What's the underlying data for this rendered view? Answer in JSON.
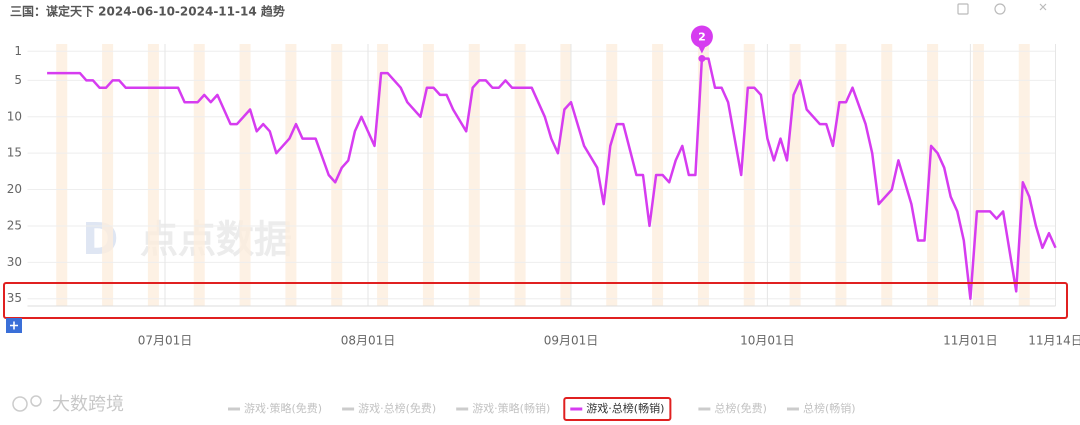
{
  "chart_data": {
    "type": "line",
    "title": "三国：谋定天下 2024-06-10-2024-11-14 趋势",
    "x": [
      "06月13日",
      "06月18日",
      "06月19日",
      "06月20日",
      "06月21日",
      "06月22日",
      "06月23日",
      "06月24日",
      "06月25日",
      "07月03日",
      "07月04日",
      "07月06日",
      "07月07日",
      "07月08日",
      "07月09日",
      "07月11日",
      "07月12日",
      "07月14日",
      "07月15日",
      "07月16日",
      "07月17日",
      "07月18日",
      "07月20日",
      "07月21日",
      "07月22日",
      "07月24日",
      "07月26日",
      "07月27日",
      "07月28日",
      "07月29日",
      "07月30日",
      "07月31日",
      "08月02日",
      "08月03日",
      "08月04日",
      "08月06日",
      "08月07日",
      "08月09日",
      "08月10日",
      "08月11日",
      "08月12日",
      "08月13日",
      "08月14日",
      "08月16日",
      "08月17日",
      "08月18日",
      "08月19日",
      "08月20日",
      "08月21日",
      "08月22日",
      "08月23日",
      "08月26日",
      "08月28日",
      "08月29日",
      "08月30日",
      "08月31日",
      "09月01日",
      "09月03日",
      "09月05日",
      "09月06日",
      "09月07日",
      "09月08日",
      "09月09日",
      "09月11日",
      "09月12日",
      "09月13日",
      "09月14日",
      "09月15日",
      "09月16日",
      "09月17日",
      "09月18日",
      "09月19日",
      "09月20日",
      "09月21日",
      "09月22日",
      "09月23日",
      "09月24日",
      "09月25日",
      "09月27日",
      "09月28日",
      "09月29日",
      "09月30日",
      "10月01日",
      "10月02日",
      "10月03日",
      "10月04日",
      "10月05日",
      "10月06日",
      "10月07日",
      "10月09日",
      "10月10日",
      "10月11日",
      "10月12日",
      "10月13日",
      "10月14日",
      "10月16日",
      "10月17日",
      "10月18日",
      "10月20日",
      "10月21日",
      "10月23日",
      "10月24日",
      "10月25日",
      "10月26日",
      "10月27日",
      "10月28日",
      "10月29日",
      "10月30日",
      "10月31日",
      "11月01日",
      "11月02日",
      "11月04日",
      "11月05日",
      "11月06日",
      "11月08日",
      "11月09日",
      "11月10日",
      "11月11日",
      "11月12日",
      "11月13日",
      "11月14日"
    ],
    "series": [
      {
        "name": "游戏·策略(免费)",
        "color": "#cccccc",
        "visible": false
      },
      {
        "name": "游戏·总榜(免费)",
        "color": "#cccccc",
        "visible": false
      },
      {
        "name": "游戏·策略(畅销)",
        "color": "#cccccc",
        "visible": false
      },
      {
        "name": "游戏·总榜(畅销)",
        "color": "#d63cf0",
        "visible": true,
        "values": [
          4,
          4,
          5,
          5,
          6,
          6,
          5,
          5,
          6,
          6,
          8,
          8,
          7,
          8,
          7,
          11,
          11,
          9,
          12,
          11,
          12,
          15,
          13,
          11,
          13,
          13,
          18,
          19,
          17,
          16,
          12,
          10,
          14,
          4,
          4,
          6,
          8,
          10,
          6,
          6,
          7,
          7,
          9,
          12,
          6,
          5,
          5,
          6,
          6,
          5,
          6,
          6,
          10,
          13,
          15,
          9,
          8,
          14,
          17,
          22,
          14,
          11,
          11,
          18,
          18,
          25,
          18,
          18,
          19,
          16,
          14,
          18,
          18,
          2,
          2,
          6,
          6,
          8,
          18,
          6,
          6,
          7,
          13,
          16,
          13,
          16,
          7,
          5,
          9,
          11,
          11,
          14,
          8,
          8,
          6,
          11,
          15,
          22,
          20,
          16,
          22,
          27,
          27,
          14,
          15,
          17,
          21,
          23,
          27,
          35,
          23,
          23,
          24,
          23,
          34,
          19,
          21,
          25,
          28,
          26,
          28
        ]
      },
      {
        "name": "总榜(免费)",
        "color": "#cccccc",
        "visible": false
      },
      {
        "name": "总榜(畅销)",
        "color": "#cccccc",
        "visible": false
      }
    ],
    "xlim": [
      "06月10日",
      "11月14日"
    ],
    "xticks": [
      "07月01日",
      "08月01日",
      "09月01日",
      "10月01日",
      "11月01日",
      "11月14日"
    ],
    "ylim": [
      0,
      36
    ],
    "y_inverted": true,
    "yticks": [
      1,
      5,
      10,
      15,
      20,
      25,
      30,
      35
    ],
    "grid": true,
    "annotations": [
      {
        "x": "09月21日",
        "text": "2"
      }
    ],
    "watermarks": [
      "点点数据",
      "大数跨境"
    ]
  }
}
